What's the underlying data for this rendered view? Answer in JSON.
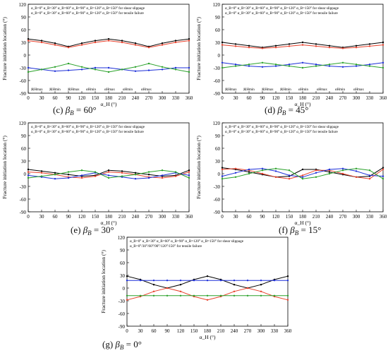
{
  "colors": [
    "#000000",
    "#e8412c",
    "#1d2fd8",
    "#2aa12a",
    "#9a9a00",
    "#b000b0",
    "#00b0c8"
  ],
  "panels": [
    {
      "id": "c",
      "caption_letter": "(c)",
      "caption_value": "= 60°"
    },
    {
      "id": "d",
      "caption_letter": "(d)",
      "caption_value": "= 45°"
    },
    {
      "id": "e",
      "caption_letter": "(e)",
      "caption_value": "= 30°"
    },
    {
      "id": "f",
      "caption_letter": "(f)",
      "caption_value": "= 15°"
    },
    {
      "id": "g",
      "caption_letter": "(g)",
      "caption_value": "= 0°"
    }
  ],
  "caption_beta": "β",
  "caption_sub": "B",
  "chart_data": [
    {
      "type": "line",
      "title": "",
      "xlabel": "α_H (°)",
      "ylabel": "Fracture initiation location (°)",
      "xlim": [
        0,
        360
      ],
      "ylim": [
        -90,
        120
      ],
      "xticks": [
        0,
        30,
        60,
        90,
        120,
        150,
        180,
        210,
        240,
        270,
        300,
        330,
        360
      ],
      "yticks": [
        -90,
        -60,
        -30,
        0,
        30,
        60,
        90,
        120
      ],
      "legend_shear": [
        "α_B=0°",
        "α_B=30°",
        "α_B=60°",
        "α_B=90°",
        "α_B=120°",
        "α_B=150° for shear slippage"
      ],
      "legend_tensile": [
        "α_B=0°",
        "α_B=30°",
        "α_B=60°",
        "α_B=90°",
        "α_B=120°",
        "α_B=150° for tensile failure"
      ],
      "annotations": [
        "|θ|Hmax",
        "|θ|Hmin",
        "|θ|Hmax",
        "αHmin",
        "αHmax",
        "αHmin",
        "αHmax"
      ],
      "series": [
        {
          "name": "α_B=0°",
          "x": [
            0,
            30,
            60,
            90,
            120,
            150,
            180,
            210,
            240,
            270,
            300,
            330,
            360
          ],
          "y": [
            38,
            34,
            28,
            20,
            28,
            34,
            38,
            34,
            28,
            20,
            28,
            34,
            38
          ]
        },
        {
          "name": "α_B=30°",
          "x": [
            0,
            30,
            60,
            90,
            120,
            150,
            180,
            210,
            240,
            270,
            300,
            330,
            360
          ],
          "y": [
            34,
            30,
            24,
            18,
            24,
            30,
            34,
            30,
            24,
            18,
            24,
            30,
            34
          ]
        },
        {
          "name": "α_B=60°",
          "x": [
            0,
            30,
            60,
            90,
            120,
            150,
            180,
            210,
            240,
            270,
            300,
            330,
            360
          ],
          "y": [
            -30,
            -34,
            -38,
            -36,
            -34,
            -30,
            -30,
            -34,
            -38,
            -36,
            -34,
            -30,
            -30
          ]
        },
        {
          "name": "α_B=90°",
          "x": [
            0,
            30,
            60,
            90,
            120,
            150,
            180,
            210,
            240,
            270,
            300,
            330,
            360
          ],
          "y": [
            -40,
            -34,
            -28,
            -20,
            -28,
            -34,
            -40,
            -34,
            -28,
            -20,
            -28,
            -34,
            -40
          ]
        }
      ]
    },
    {
      "type": "line",
      "title": "",
      "xlabel": "α_H (°)",
      "ylabel": "Fracture initiation location (°)",
      "xlim": [
        0,
        360
      ],
      "ylim": [
        -90,
        120
      ],
      "xticks": [
        0,
        30,
        60,
        90,
        120,
        150,
        180,
        210,
        240,
        270,
        300,
        330,
        360
      ],
      "yticks": [
        -90,
        -60,
        -30,
        0,
        30,
        60,
        90,
        120
      ],
      "legend_shear": [
        "α_B=0°",
        "α_B=30°",
        "α_B=60°",
        "α_B=90°",
        "α_B=120°",
        "α_B=150° for shear slippage"
      ],
      "legend_tensile": [
        "α_B=0°",
        "α_B=30°",
        "α_B=60°",
        "α_B=90°",
        "α_B=120°",
        "α_B=150° for tensile failure"
      ],
      "annotations": [
        "|θ|Hmax",
        "|θ|Hmin",
        "|θ|Hmax",
        "|θ|Hmin",
        "αHmin",
        "αHmax",
        "αHmin",
        "αHmax"
      ],
      "series": [
        {
          "name": "α_B=0°",
          "x": [
            0,
            30,
            60,
            90,
            120,
            150,
            180,
            210,
            240,
            270,
            300,
            330,
            360
          ],
          "y": [
            30,
            26,
            22,
            18,
            22,
            26,
            30,
            26,
            22,
            18,
            22,
            26,
            30
          ]
        },
        {
          "name": "α_B=30°",
          "x": [
            0,
            30,
            60,
            90,
            120,
            150,
            180,
            210,
            240,
            270,
            300,
            330,
            360
          ],
          "y": [
            24,
            21,
            18,
            16,
            18,
            21,
            24,
            21,
            18,
            16,
            18,
            21,
            24
          ]
        },
        {
          "name": "α_B=60°",
          "x": [
            0,
            30,
            60,
            90,
            120,
            150,
            180,
            210,
            240,
            270,
            300,
            330,
            360
          ],
          "y": [
            -18,
            -22,
            -26,
            -28,
            -26,
            -22,
            -18,
            -22,
            -26,
            -28,
            -26,
            -22,
            -18
          ]
        },
        {
          "name": "α_B=90°",
          "x": [
            0,
            30,
            60,
            90,
            120,
            150,
            180,
            210,
            240,
            270,
            300,
            330,
            360
          ],
          "y": [
            -30,
            -26,
            -22,
            -18,
            -22,
            -26,
            -30,
            -26,
            -22,
            -18,
            -22,
            -26,
            -30
          ]
        }
      ]
    },
    {
      "type": "line",
      "title": "",
      "xlabel": "α_H (°)",
      "ylabel": "Fracture initiation location (°)",
      "xlim": [
        0,
        360
      ],
      "ylim": [
        -90,
        120
      ],
      "xticks": [
        0,
        30,
        60,
        90,
        120,
        150,
        180,
        210,
        240,
        270,
        300,
        330,
        360
      ],
      "yticks": [
        -90,
        -60,
        -30,
        0,
        30,
        60,
        90,
        120
      ],
      "legend_shear": [
        "α_B=0°",
        "α_B=30°",
        "α_B=60°",
        "α_B=90°",
        "α_B=120°",
        "α_B=150° for shear slippage"
      ],
      "legend_tensile": [
        "α_B=0°",
        "α_B=30°",
        "α_B=60°",
        "α_B=90°",
        "α_B=120°",
        "α_B=150° for tensile failure"
      ],
      "annotations": [],
      "series": [
        {
          "name": "α_B=0°",
          "x": [
            0,
            30,
            60,
            90,
            120,
            150,
            180,
            210,
            240,
            270,
            300,
            330,
            360
          ],
          "y": [
            10,
            6,
            2,
            -2,
            -6,
            -4,
            8,
            6,
            2,
            -2,
            -6,
            -4,
            8
          ]
        },
        {
          "name": "α_B=30°",
          "x": [
            0,
            30,
            60,
            90,
            120,
            150,
            180,
            210,
            240,
            270,
            300,
            330,
            360
          ],
          "y": [
            4,
            2,
            -2,
            -8,
            -10,
            -6,
            4,
            2,
            -2,
            -8,
            -10,
            -6,
            4
          ]
        },
        {
          "name": "α_B=60°",
          "x": [
            0,
            30,
            60,
            90,
            120,
            150,
            180,
            210,
            240,
            270,
            300,
            330,
            360
          ],
          "y": [
            -4,
            -8,
            -12,
            -10,
            -4,
            2,
            -4,
            -8,
            -12,
            -10,
            -4,
            2,
            -4
          ]
        },
        {
          "name": "α_B=90°",
          "x": [
            0,
            30,
            60,
            90,
            120,
            150,
            180,
            210,
            240,
            270,
            300,
            330,
            360
          ],
          "y": [
            -10,
            -6,
            -2,
            4,
            8,
            4,
            -10,
            -6,
            -2,
            4,
            8,
            4,
            -10
          ]
        }
      ]
    },
    {
      "type": "line",
      "title": "",
      "xlabel": "α_H (°)",
      "ylabel": "Fracture initiation location (°)",
      "xlim": [
        0,
        360
      ],
      "ylim": [
        -90,
        120
      ],
      "xticks": [
        0,
        30,
        60,
        90,
        120,
        150,
        180,
        210,
        240,
        270,
        300,
        330,
        360
      ],
      "yticks": [
        -90,
        -60,
        -30,
        0,
        30,
        60,
        90,
        120
      ],
      "legend_shear": [
        "α_B=0°",
        "α_B=30°",
        "α_B=60°",
        "α_B=90°",
        "α_B=120°",
        "α_B=150° for shear slippage"
      ],
      "legend_tensile": [
        "α_B=0°",
        "α_B=30°",
        "α_B=60°",
        "α_B=90°",
        "α_B=120°",
        "α_B=150° for tensile failure"
      ],
      "annotations": [],
      "series": [
        {
          "name": "α_B=0°",
          "x": [
            0,
            30,
            60,
            90,
            120,
            150,
            180,
            210,
            240,
            270,
            300,
            330,
            360
          ],
          "y": [
            14,
            10,
            4,
            -2,
            -8,
            -6,
            10,
            10,
            4,
            -2,
            -8,
            -6,
            14
          ]
        },
        {
          "name": "α_B=30°",
          "x": [
            0,
            30,
            60,
            90,
            120,
            150,
            180,
            210,
            240,
            270,
            300,
            330,
            360
          ],
          "y": [
            10,
            12,
            8,
            0,
            -8,
            -12,
            -4,
            8,
            8,
            0,
            -8,
            -12,
            10
          ]
        },
        {
          "name": "α_B=60°",
          "x": [
            0,
            30,
            60,
            90,
            120,
            150,
            180,
            210,
            240,
            270,
            300,
            330,
            360
          ],
          "y": [
            -6,
            2,
            10,
            12,
            6,
            -4,
            -8,
            2,
            10,
            12,
            6,
            -4,
            -6
          ]
        },
        {
          "name": "α_B=90°",
          "x": [
            0,
            30,
            60,
            90,
            120,
            150,
            180,
            210,
            240,
            270,
            300,
            330,
            360
          ],
          "y": [
            -12,
            -8,
            0,
            8,
            12,
            8,
            -12,
            -8,
            0,
            8,
            12,
            8,
            -12
          ]
        }
      ]
    },
    {
      "type": "line",
      "title": "",
      "xlabel": "α_H (°)",
      "ylabel": "Fracture initiation location (°)",
      "xlim": [
        0,
        360
      ],
      "ylim": [
        -90,
        120
      ],
      "xticks": [
        0,
        30,
        60,
        90,
        120,
        150,
        180,
        210,
        240,
        270,
        300,
        330,
        360
      ],
      "yticks": [
        -90,
        -60,
        -30,
        0,
        30,
        60,
        90,
        120
      ],
      "legend_shear": [
        "α_B=0°",
        "α_B=30°",
        "α_B=60°",
        "α_B=90°",
        "α_B=120°",
        "α_B=150° for shear slippage"
      ],
      "legend_tensile": [
        "α_B=0°/30°/60°/90°/120°/150° for tensile failure"
      ],
      "annotations": [],
      "series": [
        {
          "name": "α_B=0°",
          "x": [
            0,
            30,
            60,
            90,
            120,
            150,
            180,
            210,
            240,
            270,
            300,
            330,
            360
          ],
          "y": [
            28,
            20,
            8,
            0,
            8,
            20,
            28,
            20,
            8,
            0,
            8,
            20,
            28
          ]
        },
        {
          "name": "α_B=30°",
          "x": [
            0,
            30,
            60,
            90,
            120,
            150,
            180,
            210,
            240,
            270,
            300,
            330,
            360
          ],
          "y": [
            -28,
            -20,
            -8,
            0,
            -8,
            -20,
            -28,
            -20,
            -8,
            0,
            -8,
            -20,
            -28
          ]
        },
        {
          "name": "α_B=60°",
          "x": [
            0,
            30,
            60,
            90,
            120,
            150,
            180,
            210,
            240,
            270,
            300,
            330,
            360
          ],
          "y": [
            18,
            18,
            18,
            18,
            18,
            18,
            18,
            18,
            18,
            18,
            18,
            18,
            18
          ]
        },
        {
          "name": "α_B=90°",
          "x": [
            0,
            30,
            60,
            90,
            120,
            150,
            180,
            210,
            240,
            270,
            300,
            330,
            360
          ],
          "y": [
            -18,
            -18,
            -18,
            -18,
            -18,
            -18,
            -18,
            -18,
            -18,
            -18,
            -18,
            -18,
            -18
          ]
        }
      ]
    }
  ]
}
